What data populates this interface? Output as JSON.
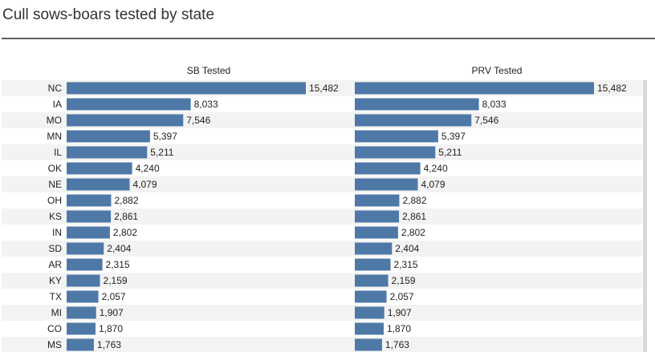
{
  "title": "Cull sows-boars tested by state",
  "chart_data": [
    {
      "type": "bar",
      "orientation": "horizontal",
      "title": "SB Tested",
      "categories": [
        "NC",
        "IA",
        "MO",
        "MN",
        "IL",
        "OK",
        "NE",
        "OH",
        "KS",
        "IN",
        "SD",
        "AR",
        "KY",
        "TX",
        "MI",
        "CO",
        "MS"
      ],
      "values": [
        15482,
        8033,
        7546,
        5397,
        5211,
        4240,
        4079,
        2882,
        2861,
        2802,
        2404,
        2315,
        2159,
        2057,
        1907,
        1870,
        1763
      ],
      "value_labels": [
        "15,482",
        "8,033",
        "7,546",
        "5,397",
        "5,211",
        "4,240",
        "4,079",
        "2,882",
        "2,861",
        "2,802",
        "2,404",
        "2,315",
        "2,159",
        "2,057",
        "1,907",
        "1,870",
        "1,763"
      ],
      "xlim": [
        0,
        17500
      ],
      "color": "#4e79a7"
    },
    {
      "type": "bar",
      "orientation": "horizontal",
      "title": "PRV Tested",
      "categories": [
        "NC",
        "IA",
        "MO",
        "MN",
        "IL",
        "OK",
        "NE",
        "OH",
        "KS",
        "IN",
        "SD",
        "AR",
        "KY",
        "TX",
        "MI",
        "CO",
        "MS"
      ],
      "values": [
        15482,
        8033,
        7546,
        5397,
        5211,
        4240,
        4079,
        2882,
        2861,
        2802,
        2404,
        2315,
        2159,
        2057,
        1907,
        1870,
        1763
      ],
      "value_labels": [
        "15,482",
        "8,033",
        "7,546",
        "5,397",
        "5,211",
        "4,240",
        "4,079",
        "2,882",
        "2,861",
        "2,802",
        "2,404",
        "2,315",
        "2,159",
        "2,057",
        "1,907",
        "1,870",
        "1,763"
      ],
      "xlim": [
        0,
        17500
      ],
      "color": "#4e79a7"
    }
  ]
}
